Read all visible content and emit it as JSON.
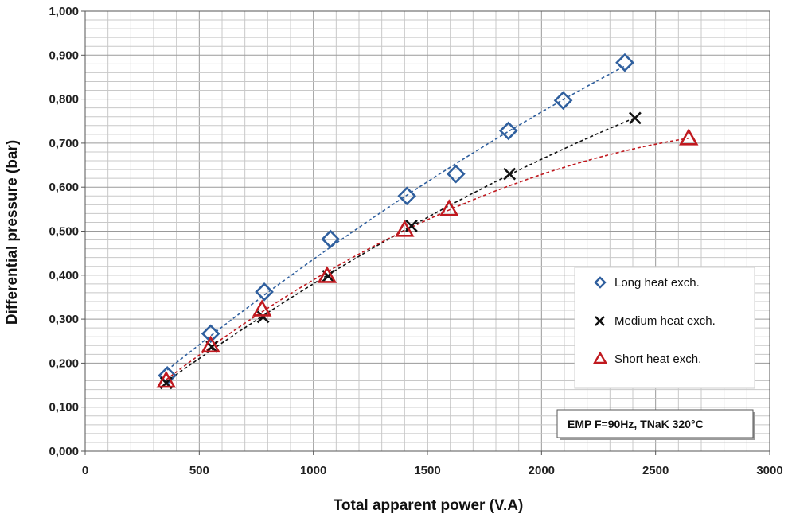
{
  "chart_data": {
    "type": "scatter",
    "xlabel": "Total apparent power (V.A)",
    "ylabel": "Differential pressure (bar)",
    "xlim": [
      0,
      3000
    ],
    "ylim": [
      0,
      1
    ],
    "x_ticks": [
      0,
      500,
      1000,
      1500,
      2000,
      2500,
      3000
    ],
    "y_ticks": [
      0,
      0.1,
      0.2,
      0.3,
      0.4,
      0.5,
      0.6,
      0.7,
      0.8,
      0.9,
      1.0
    ],
    "x_tick_labels": [
      "0",
      "500",
      "1000",
      "1500",
      "2000",
      "2500",
      "3000"
    ],
    "y_tick_labels": [
      "0,000",
      "0,100",
      "0,200",
      "0,300",
      "0,400",
      "0,500",
      "0,600",
      "0,700",
      "0,800",
      "0,900",
      "1,000"
    ],
    "grid": true,
    "legend_position": "right",
    "annotation": "EMP F=90Hz, TNaK 320°C",
    "series": [
      {
        "name": "Long heat exch.",
        "marker": "diamond",
        "color": "#2f5f9e",
        "x": [
          360,
          550,
          785,
          1075,
          1410,
          1625,
          1855,
          2095,
          2365
        ],
        "y": [
          0.172,
          0.267,
          0.362,
          0.482,
          0.58,
          0.63,
          0.728,
          0.797,
          0.883
        ]
      },
      {
        "name": "Medium heat exch.",
        "marker": "x",
        "color": "#111111",
        "x": [
          355,
          555,
          780,
          1065,
          1430,
          1860,
          2410
        ],
        "y": [
          0.155,
          0.237,
          0.305,
          0.398,
          0.512,
          0.63,
          0.757
        ]
      },
      {
        "name": "Short heat exch.",
        "marker": "triangle",
        "color": "#c0191f",
        "x": [
          355,
          550,
          775,
          1060,
          1400,
          1595,
          2645
        ],
        "y": [
          0.16,
          0.24,
          0.322,
          0.398,
          0.503,
          0.55,
          0.711
        ]
      }
    ]
  }
}
